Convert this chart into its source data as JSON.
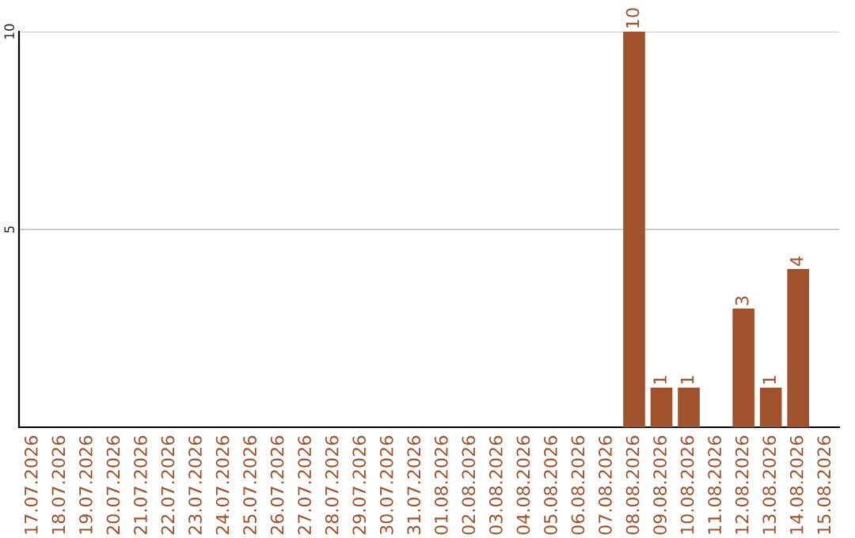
{
  "chart_data": {
    "type": "bar",
    "categories": [
      "17.07.2026",
      "18.07.2026",
      "19.07.2026",
      "20.07.2026",
      "21.07.2026",
      "22.07.2026",
      "23.07.2026",
      "24.07.2026",
      "25.07.2026",
      "26.07.2026",
      "27.07.2026",
      "28.07.2026",
      "29.07.2026",
      "30.07.2026",
      "31.07.2026",
      "01.08.2026",
      "02.08.2026",
      "03.08.2026",
      "04.08.2026",
      "05.08.2026",
      "06.08.2026",
      "07.08.2026",
      "08.08.2026",
      "09.08.2026",
      "10.08.2026",
      "11.08.2026",
      "12.08.2026",
      "13.08.2026",
      "14.08.2026",
      "15.08.2026"
    ],
    "values": [
      0,
      0,
      0,
      0,
      0,
      0,
      0,
      0,
      0,
      0,
      0,
      0,
      0,
      0,
      0,
      0,
      0,
      0,
      0,
      0,
      0,
      0,
      10,
      1,
      1,
      0,
      3,
      1,
      4,
      0
    ],
    "value_labels": [
      null,
      null,
      null,
      null,
      null,
      null,
      null,
      null,
      null,
      null,
      null,
      null,
      null,
      null,
      null,
      null,
      null,
      null,
      null,
      null,
      null,
      null,
      "10",
      "1",
      "1",
      null,
      "3",
      "1",
      "4",
      null
    ],
    "color": "#a0522d",
    "ylim": [
      0,
      10
    ],
    "yticks": [
      5,
      10
    ],
    "grid": "y"
  }
}
